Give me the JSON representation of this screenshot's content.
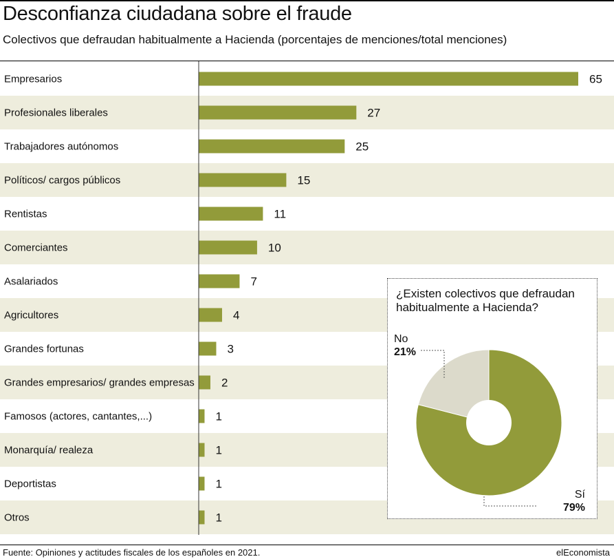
{
  "header": {
    "title": "Desconfianza ciudadana sobre el fraude",
    "subtitle": "Colectivos que defraudan habitualmente a Hacienda (porcentajes de menciones/total menciones)"
  },
  "chart_data": [
    {
      "type": "bar",
      "orientation": "horizontal",
      "categories": [
        "Empresarios",
        "Profesionales liberales",
        "Trabajadores autónomos",
        "Políticos/ cargos públicos",
        "Rentistas",
        "Comerciantes",
        "Asalariados",
        "Agricultores",
        "Grandes fortunas",
        "Grandes empresarios/ grandes empresas",
        "Famosos (actores, cantantes,...)",
        "Monarquía/ realeza",
        "Deportistas",
        "Otros"
      ],
      "values": [
        65,
        27,
        25,
        15,
        11,
        10,
        7,
        4,
        3,
        2,
        1,
        1,
        1,
        1
      ],
      "value_labels": [
        "65",
        "27",
        "25",
        "15",
        "11",
        "10",
        "7",
        "4",
        "3",
        "2",
        "1",
        "1",
        "1",
        "1"
      ],
      "color": "#929b3a",
      "stripe_color": "#eeeddd"
    },
    {
      "type": "pie",
      "title": "¿Existen colectivos que defraudan habitualmente a Hacienda?",
      "slices": [
        {
          "label": "Sí",
          "value": 79,
          "pct_label": "79%",
          "color": "#929b3a"
        },
        {
          "label": "No",
          "value": 21,
          "pct_label": "21%",
          "color": "#dcdacb"
        }
      ],
      "hole": true
    }
  ],
  "footer": {
    "source": "Fuente: Opiniones y actitudes fiscales de los españoles en 2021.",
    "brand": "elEconomista"
  }
}
